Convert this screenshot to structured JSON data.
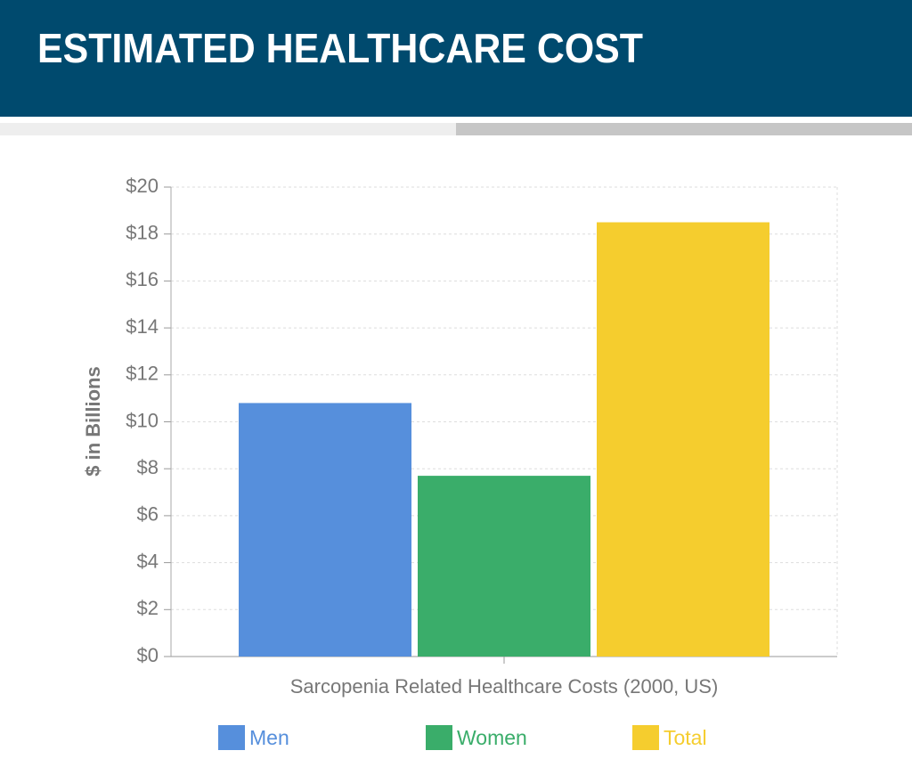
{
  "header": {
    "title": "ESTIMATED HEALTHCARE COST"
  },
  "chart_data": {
    "type": "bar",
    "y_label": "$ in Billions",
    "categories": [
      "Sarcopenia Related Healthcare Costs (2000, US)"
    ],
    "series": [
      {
        "name": "Men",
        "color": "#568fdc",
        "values": [
          10.8
        ]
      },
      {
        "name": "Women",
        "color": "#3aad6a",
        "values": [
          7.7
        ]
      },
      {
        "name": "Total",
        "color": "#f5cd2e",
        "values": [
          18.5
        ]
      }
    ],
    "ylim": [
      0,
      20
    ],
    "yticks": [
      {
        "value": 0,
        "label": "$0"
      },
      {
        "value": 2,
        "label": "$2"
      },
      {
        "value": 4,
        "label": "$4"
      },
      {
        "value": 6,
        "label": "$6"
      },
      {
        "value": 8,
        "label": "$8"
      },
      {
        "value": 10,
        "label": "$10"
      },
      {
        "value": 12,
        "label": "$12"
      },
      {
        "value": 14,
        "label": "$14"
      },
      {
        "value": 16,
        "label": "$16"
      },
      {
        "value": 18,
        "label": "$18"
      },
      {
        "value": 20,
        "label": "$20"
      }
    ],
    "grid": true
  }
}
